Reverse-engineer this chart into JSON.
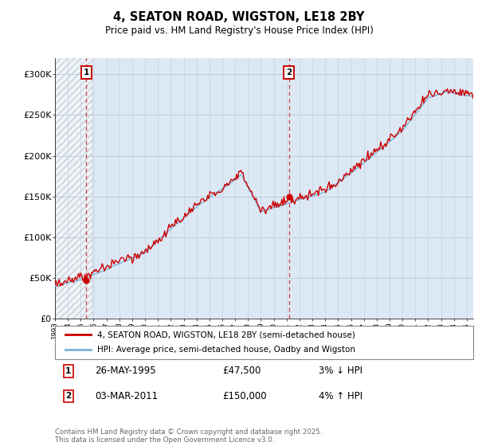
{
  "title": "4, SEATON ROAD, WIGSTON, LE18 2BY",
  "subtitle": "Price paid vs. HM Land Registry's House Price Index (HPI)",
  "ylim": [
    0,
    320000
  ],
  "yticks": [
    0,
    50000,
    100000,
    150000,
    200000,
    250000,
    300000
  ],
  "ytick_labels": [
    "£0",
    "£50K",
    "£100K",
    "£150K",
    "£200K",
    "£250K",
    "£300K"
  ],
  "xmin": 1993,
  "xmax": 2025.5,
  "hatch_end_year": 1995.9,
  "t1_year": 1995.42,
  "t1_price": 47500,
  "t2_year": 2011.17,
  "t2_price": 150000,
  "legend_line1": "4, SEATON ROAD, WIGSTON, LE18 2BY (semi-detached house)",
  "legend_line2": "HPI: Average price, semi-detached house, Oadby and Wigston",
  "footer": "Contains HM Land Registry data © Crown copyright and database right 2025.\nThis data is licensed under the Open Government Licence v3.0.",
  "line_color_red": "#cc0000",
  "line_color_blue": "#7ab0d4",
  "bg_color": "#dce9f5",
  "hatch_bg": "#e8e8e8",
  "grid_color": "#c0ccd8"
}
